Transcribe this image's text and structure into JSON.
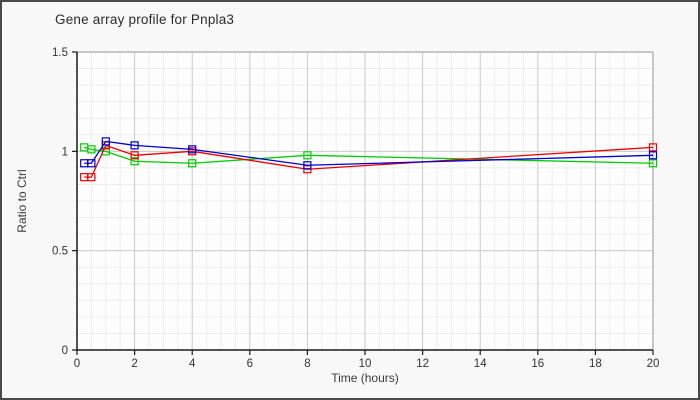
{
  "panel": {
    "background": "#f8f8f8",
    "border_color": "#4a4a4a"
  },
  "chart_data": {
    "type": "line",
    "title": "Gene array profile for Pnpla3",
    "xlabel": "Time (hours)",
    "ylabel": "Ratio to Ctrl",
    "xlim": [
      0,
      20
    ],
    "ylim": [
      0,
      1.5
    ],
    "xticks": [
      0,
      2,
      4,
      6,
      8,
      10,
      12,
      14,
      16,
      18,
      20
    ],
    "yticks": [
      0,
      0.5,
      1,
      1.5
    ],
    "ytick_labels": [
      "0",
      "0.5",
      "1",
      "1.5"
    ],
    "grid": {
      "major_color": "#c9c9c9",
      "minor_color": "#ededed",
      "x_minor_step_hours": 0.5,
      "y_minor_subdivisions": 18,
      "plot_background": "#fdfdfd",
      "plot_border_color": "#b5b5b5",
      "axis_color": "#1a1a1a"
    },
    "legend": "none",
    "marker": "open-square",
    "x": [
      0.25,
      0.5,
      1,
      2,
      4,
      8,
      20
    ],
    "series": [
      {
        "name": "green",
        "color": "#00cc00",
        "values": [
          1.02,
          1.01,
          1.0,
          0.95,
          0.94,
          0.98,
          0.94
        ]
      },
      {
        "name": "red",
        "color": "#ee0000",
        "values": [
          0.87,
          0.87,
          1.03,
          0.98,
          1.0,
          0.91,
          1.02
        ]
      },
      {
        "name": "blue",
        "color": "#0000cc",
        "values": [
          0.94,
          0.94,
          1.05,
          1.03,
          1.01,
          0.93,
          0.98
        ]
      }
    ]
  }
}
